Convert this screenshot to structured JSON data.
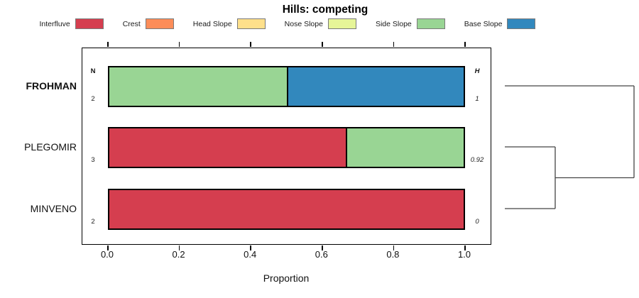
{
  "chart_data": {
    "type": "bar",
    "orientation": "horizontal",
    "stacked": true,
    "title": "Hills: competing",
    "xlabel": "Proportion",
    "xlim": [
      0,
      1
    ],
    "xticks": [
      "0.0",
      "0.2",
      "0.4",
      "0.6",
      "0.8",
      "1.0"
    ],
    "grid": false,
    "legend_position": "top",
    "column_headers": {
      "left": "N",
      "right": "H"
    },
    "legend": [
      {
        "label": "Interfluve",
        "color": "#D53E4F"
      },
      {
        "label": "Crest",
        "color": "#FC8D59"
      },
      {
        "label": "Head Slope",
        "color": "#FEE08B"
      },
      {
        "label": "Nose Slope",
        "color": "#E6F598"
      },
      {
        "label": "Side Slope",
        "color": "#99D594"
      },
      {
        "label": "Base Slope",
        "color": "#3288BD"
      }
    ],
    "rows": [
      {
        "label": "FROHMAN",
        "emphasis": true,
        "n": "2",
        "h": "1",
        "segments": [
          {
            "category": "Side Slope",
            "proportion": 0.5
          },
          {
            "category": "Base Slope",
            "proportion": 0.5
          }
        ]
      },
      {
        "label": "PLEGOMIR",
        "emphasis": false,
        "n": "3",
        "h": "0.92",
        "segments": [
          {
            "category": "Interfluve",
            "proportion": 0.667
          },
          {
            "category": "Side Slope",
            "proportion": 0.333
          }
        ]
      },
      {
        "label": "MINVENO",
        "emphasis": false,
        "n": "2",
        "h": "0",
        "segments": [
          {
            "category": "Interfluve",
            "proportion": 1.0
          }
        ]
      }
    ],
    "dendrogram": {
      "joins": [
        {
          "members": [
            "PLEGOMIR",
            "MINVENO"
          ],
          "relative_height": 0.39
        },
        {
          "members": [
            "FROHMAN",
            "cluster-1"
          ],
          "relative_height": 1.0
        }
      ]
    }
  }
}
